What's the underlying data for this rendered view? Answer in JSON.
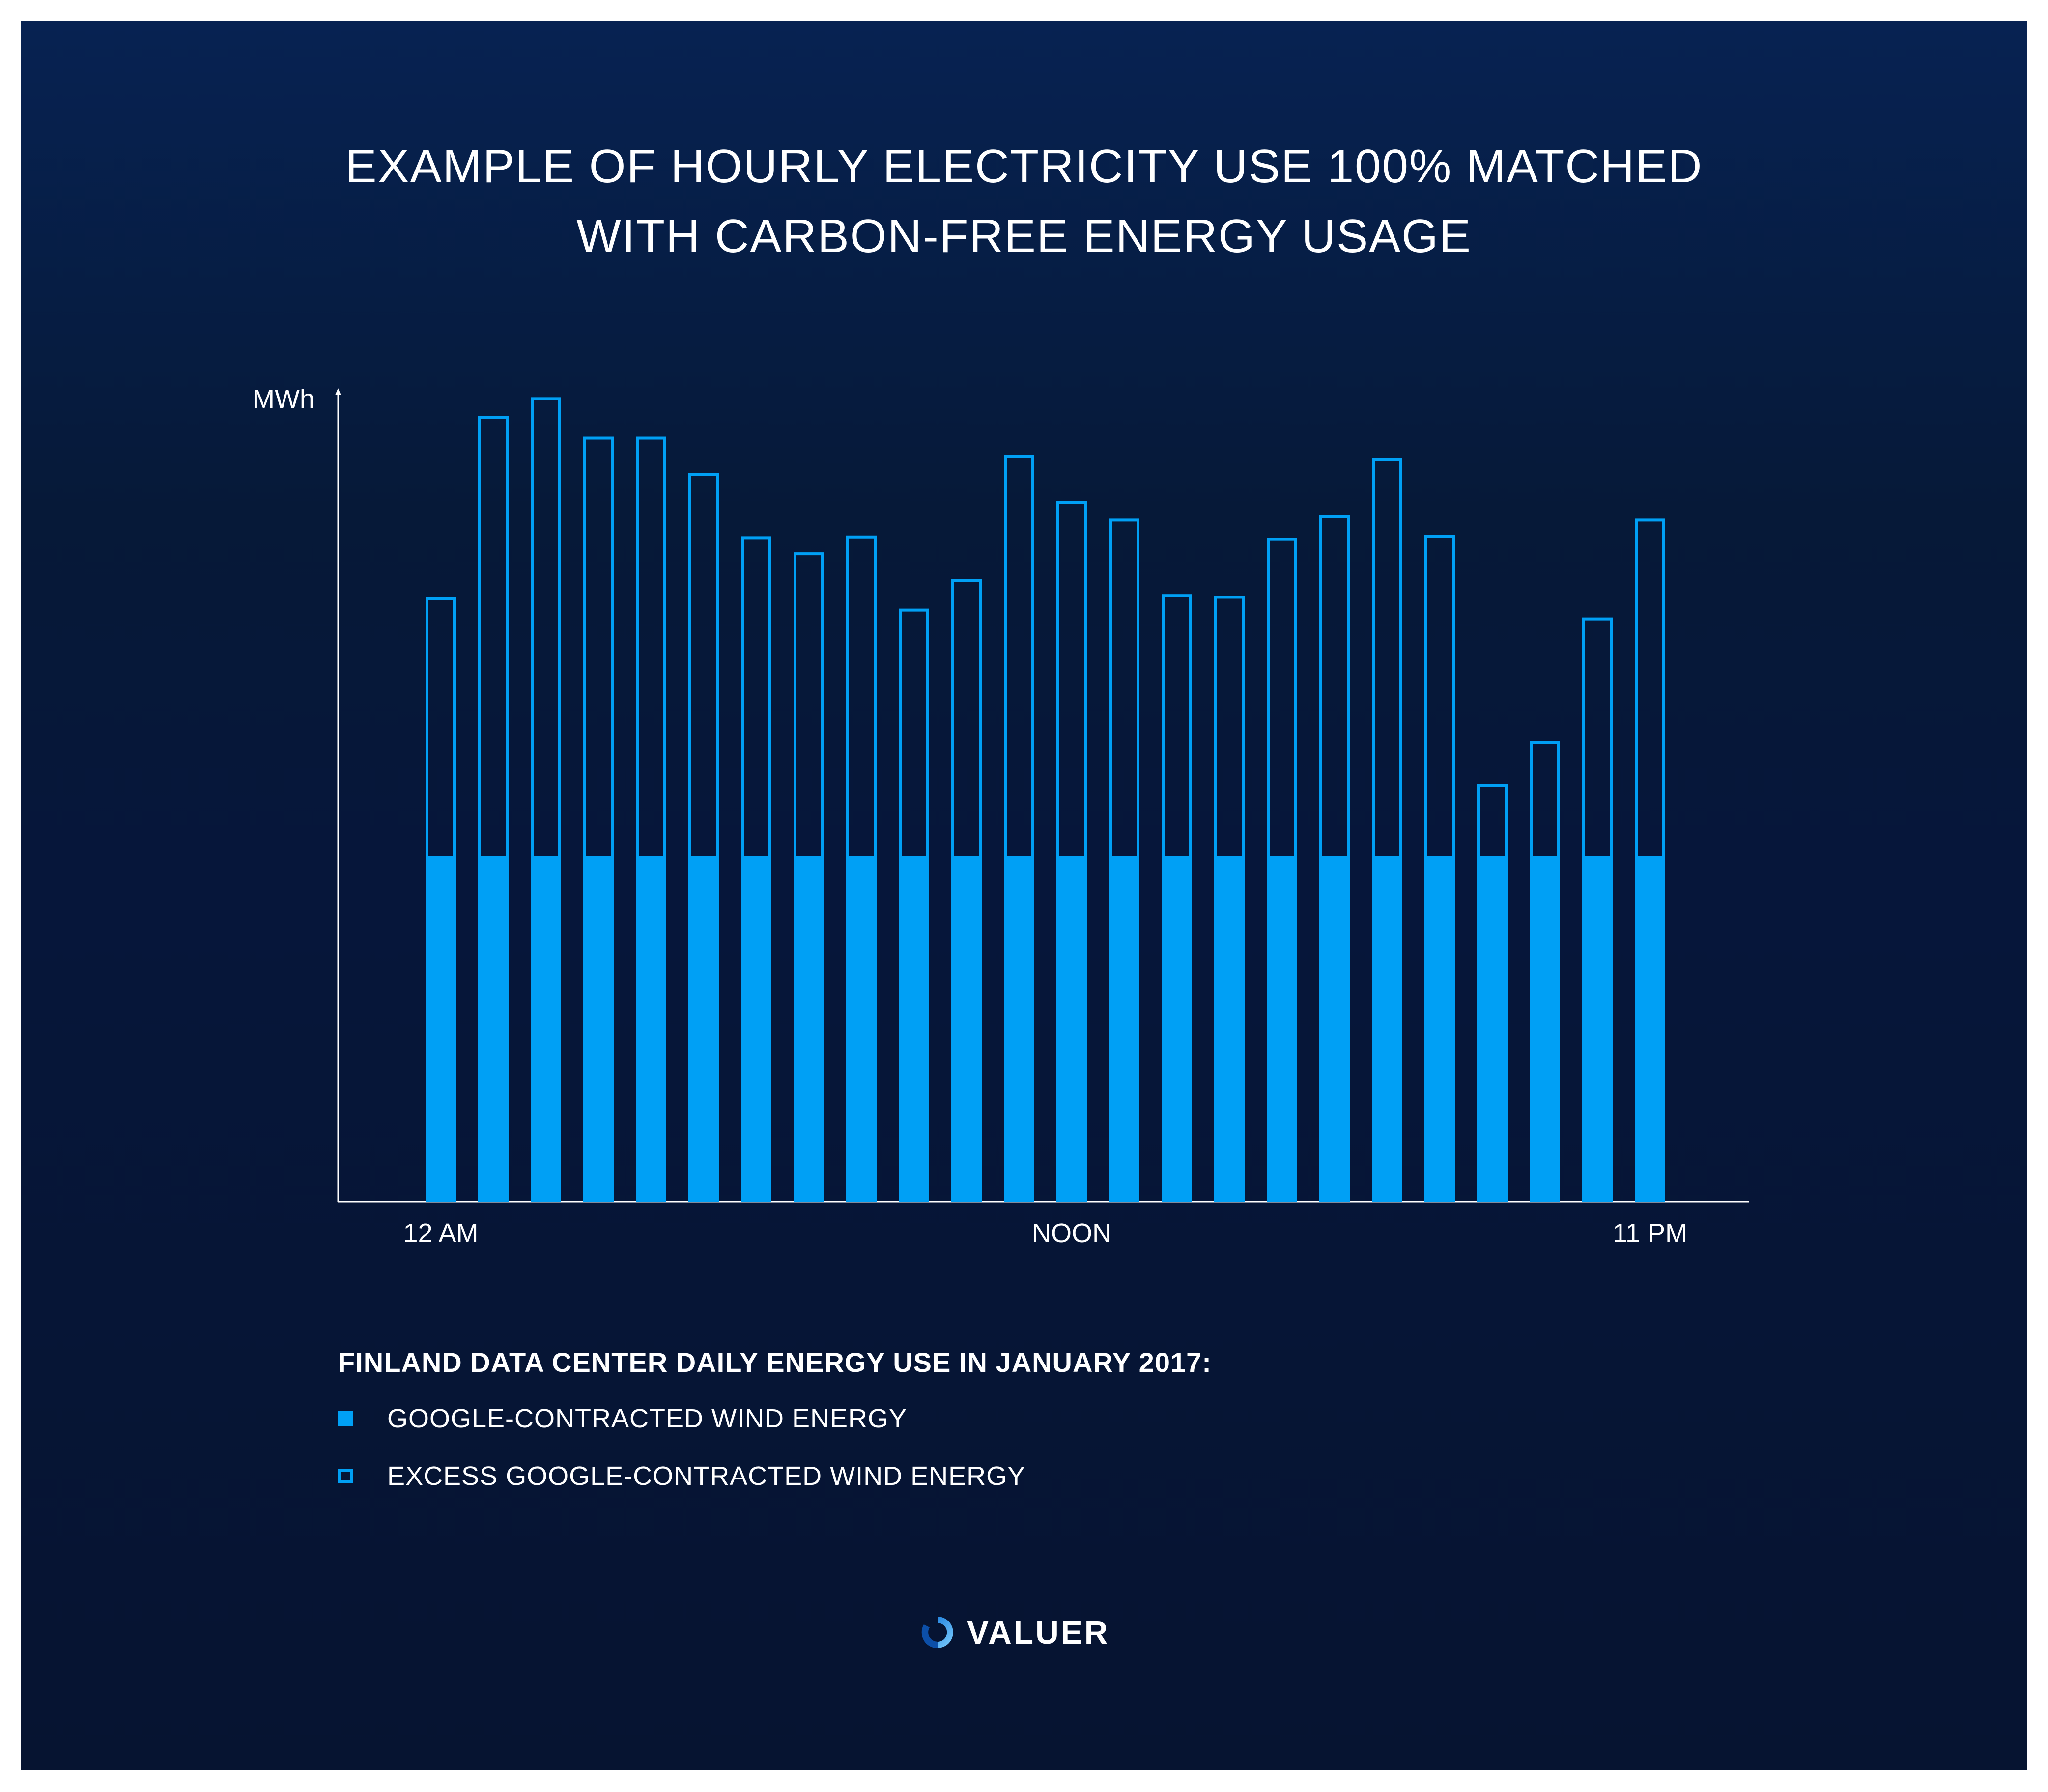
{
  "title_lines": [
    "EXAMPLE OF HOURLY ELECTRICITY USE 100% MATCHED",
    "WITH CARBON-FREE ENERGY USAGE"
  ],
  "colors": {
    "accent": "#00a0f5",
    "background_top": "#072252",
    "background_bottom": "#061431",
    "text": "#ffffff"
  },
  "chart_data": {
    "type": "bar",
    "stacked": true,
    "ylabel": "MWh",
    "xlabel": "",
    "x_tick_labels": [
      "12 AM",
      "NOON",
      "11 PM"
    ],
    "categories": [
      "0",
      "1",
      "2",
      "3",
      "4",
      "5",
      "6",
      "7",
      "8",
      "9",
      "10",
      "11",
      "12",
      "13",
      "14",
      "15",
      "16",
      "17",
      "18",
      "19",
      "20",
      "21",
      "22",
      "23"
    ],
    "x_tick_indices": [
      0,
      12,
      23
    ],
    "ylim": [
      0,
      1.0
    ],
    "grid": false,
    "legend_placement": "bottom-left",
    "series": [
      {
        "name": "GOOGLE-CONTRACTED WIND ENERGY",
        "style": "filled",
        "values": [
          0.43,
          0.43,
          0.43,
          0.43,
          0.43,
          0.43,
          0.43,
          0.43,
          0.43,
          0.43,
          0.43,
          0.43,
          0.43,
          0.43,
          0.43,
          0.43,
          0.43,
          0.43,
          0.43,
          0.43,
          0.43,
          0.43,
          0.43,
          0.43
        ]
      },
      {
        "name": "EXCESS GOOGLE-CONTRACTED WIND ENERGY",
        "style": "outline",
        "values": [
          0.322,
          0.548,
          0.571,
          0.522,
          0.522,
          0.477,
          0.398,
          0.378,
          0.399,
          0.308,
          0.345,
          0.499,
          0.442,
          0.42,
          0.326,
          0.324,
          0.396,
          0.424,
          0.495,
          0.4,
          0.09,
          0.143,
          0.297,
          0.42
        ]
      }
    ]
  },
  "legend": {
    "heading": "FINLAND DATA CENTER DAILY ENERGY USE IN JANUARY 2017:",
    "items": [
      {
        "label": "GOOGLE-CONTRACTED WIND ENERGY",
        "style": "filled"
      },
      {
        "label": "EXCESS GOOGLE-CONTRACTED WIND ENERGY",
        "style": "outline"
      }
    ]
  },
  "logo": {
    "text": "VALUER",
    "icon": "swirl-logo-icon"
  }
}
